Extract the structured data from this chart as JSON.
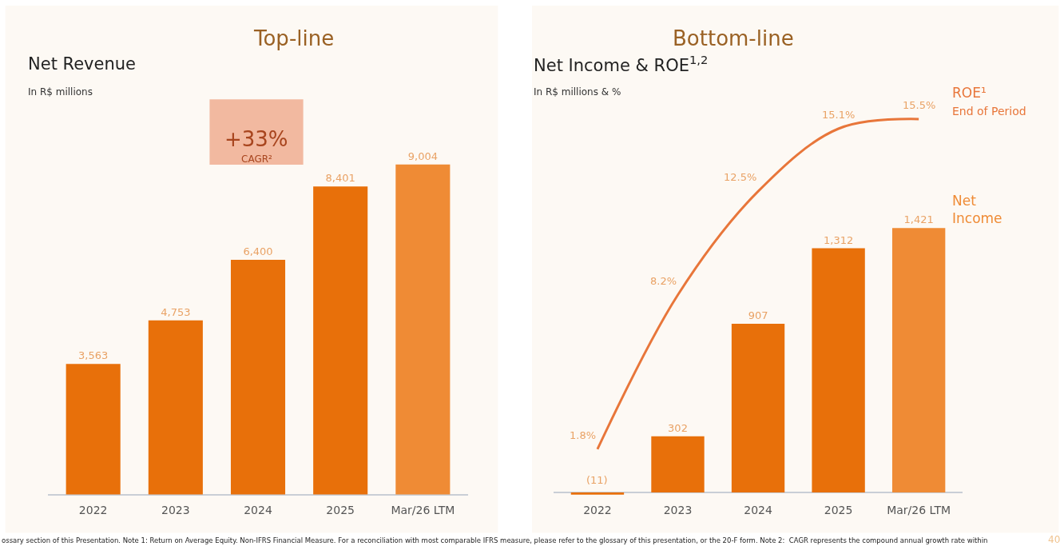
{
  "chart_data": [
    {
      "type": "bar",
      "title": "Net Revenue",
      "subtitle": "In R$ millions",
      "categories": [
        "2022",
        "2023",
        "2024",
        "2025",
        "Mar/26 LTM"
      ],
      "values": [
        3563,
        4753,
        6400,
        8401,
        9004
      ],
      "value_labels": [
        "3,563",
        "4,753",
        "6,400",
        "8,401",
        "9,004"
      ],
      "colors": [
        "#e8700a",
        "#e8700a",
        "#e8700a",
        "#e8700a",
        "#ef8b35"
      ],
      "annotations": [
        "Top-line",
        "+33%",
        "CAGR²",
        "ossary section of this Presentation. Note 1: Return on Average Equity. Non-IFRS Financial Measure. For a reconciliation with most comparable IFRS measure, please refer to the glossary of this presentation, or the 20-F form. Note 2:  CAGR represents the compound annual growth rate within",
        "40"
      ],
      "grid": false,
      "legend": false,
      "tick_labels": "x"
    },
    {
      "type": "bar",
      "title": "Net Income & ROE$^{1,2}$",
      "subtitle": "In R$ millions & %",
      "categories": [
        "2022",
        "2023",
        "2024",
        "2025",
        "Mar/26 LTM"
      ],
      "series": [
        {
          "name": "Net Income",
          "type": "bar",
          "colors": [
            "#e8700a",
            "#e8700a",
            "#e8700a",
            "#e8700a",
            "#ef8b35"
          ],
          "values": [
            -11,
            302,
            907,
            1312,
            1421
          ],
          "value_labels": [
            "(11)",
            "302",
            "907",
            "1,312",
            "1,421"
          ]
        },
        {
          "name": "ROE¹ End of Period",
          "type": "line",
          "axis": "y2",
          "color": "#e8763a",
          "values": [
            1.8,
            8.2,
            12.5,
            15.1,
            15.5
          ],
          "value_labels": [
            "1.8%",
            "8.2%",
            "12.5%",
            "15.1%",
            "15.5%"
          ]
        }
      ],
      "annotations": [
        "Bottom-line"
      ],
      "grid": false,
      "legend": "right",
      "tick_labels": "x"
    }
  ]
}
